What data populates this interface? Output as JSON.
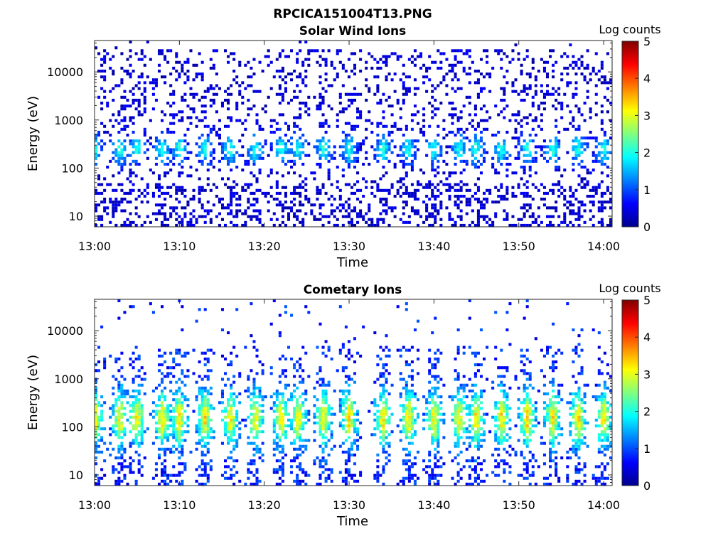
{
  "figure": {
    "title": "RPCICA151004T13.PNG"
  },
  "chart_data": [
    {
      "type": "heatmap",
      "title": "Solar Wind Ions",
      "xlabel": "Time",
      "ylabel": "Energy (eV)",
      "x_ticks": [
        "13:00",
        "13:10",
        "13:20",
        "13:30",
        "13:40",
        "13:50",
        "14:00"
      ],
      "x_range": [
        "13:00",
        "14:01"
      ],
      "y_scale": "log",
      "y_ticks": [
        10,
        100,
        1000,
        10000
      ],
      "y_tick_labels": [
        "10",
        "100",
        "1000",
        "10000"
      ],
      "y_range": [
        6,
        45000
      ],
      "colorbar": {
        "label": "Log counts",
        "range": [
          0,
          5
        ],
        "ticks": [
          "0",
          "1",
          "2",
          "3",
          "4",
          "5"
        ],
        "colormap": "jet"
      },
      "population": {
        "profile": "sparse",
        "burst_peak_energy_eV": 250,
        "typical_log_counts": [
          0,
          2
        ],
        "background_extends_to_eV": 30000
      },
      "burst_times": [
        "13:00",
        "13:03",
        "13:05",
        "13:08",
        "13:10",
        "13:13",
        "13:16",
        "13:19",
        "13:22",
        "13:24",
        "13:27",
        "13:30",
        "13:34",
        "13:37",
        "13:40",
        "13:43",
        "13:45",
        "13:48",
        "13:51",
        "13:54",
        "13:57",
        "14:00"
      ]
    },
    {
      "type": "heatmap",
      "title": "Cometary Ions",
      "xlabel": "Time",
      "ylabel": "Energy (eV)",
      "x_ticks": [
        "13:00",
        "13:10",
        "13:20",
        "13:30",
        "13:40",
        "13:50",
        "14:00"
      ],
      "x_range": [
        "13:00",
        "14:01"
      ],
      "y_scale": "log",
      "y_ticks": [
        10,
        100,
        1000,
        10000
      ],
      "y_tick_labels": [
        "10",
        "100",
        "1000",
        "10000"
      ],
      "y_range": [
        6,
        45000
      ],
      "colorbar": {
        "label": "Log counts",
        "range": [
          0,
          5
        ],
        "ticks": [
          "0",
          "1",
          "2",
          "3",
          "4",
          "5"
        ],
        "colormap": "jet"
      },
      "population": {
        "profile": "dense",
        "burst_peak_energy_eV": 150,
        "typical_log_counts": [
          1,
          3
        ],
        "background_extends_to_eV": 5000
      },
      "burst_times": [
        "13:00",
        "13:03",
        "13:05",
        "13:08",
        "13:10",
        "13:13",
        "13:16",
        "13:19",
        "13:22",
        "13:24",
        "13:27",
        "13:30",
        "13:34",
        "13:37",
        "13:40",
        "13:43",
        "13:45",
        "13:48",
        "13:51",
        "13:54",
        "13:57",
        "14:00"
      ]
    }
  ]
}
